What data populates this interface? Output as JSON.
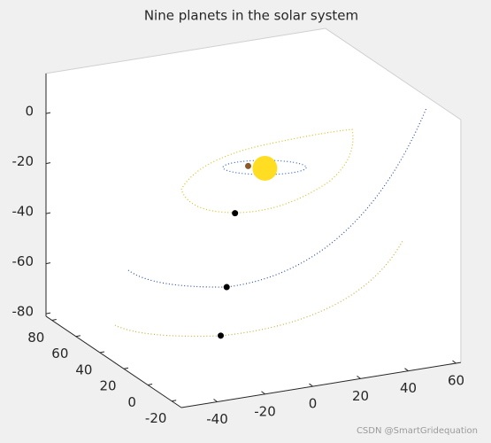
{
  "chart_data": {
    "type": "scatter3d",
    "title": "Nine planets in the solar system",
    "xlim": [
      -55,
      62
    ],
    "ylim": [
      -28,
      85
    ],
    "zlim": [
      -81,
      16
    ],
    "xticks": [
      -40,
      -20,
      0,
      20,
      40,
      60
    ],
    "yticks": [
      -20,
      0,
      20,
      40,
      60,
      80
    ],
    "zticks": [
      -80,
      -60,
      -40,
      -20,
      0
    ],
    "points": {
      "x": [
        -6,
        -13,
        -21,
        -27,
        -32
      ],
      "y": [
        0,
        0,
        -5,
        -10,
        -15
      ],
      "z": [
        -2,
        0,
        -16,
        -43,
        -60
      ],
      "sizes": [
        28,
        7,
        7,
        7,
        7
      ],
      "colors": [
        "#ffdd22",
        "#8b5a2b",
        "#000000",
        "#000000",
        "#000000"
      ]
    }
  },
  "watermark": "CSDN @SmartGridequation"
}
